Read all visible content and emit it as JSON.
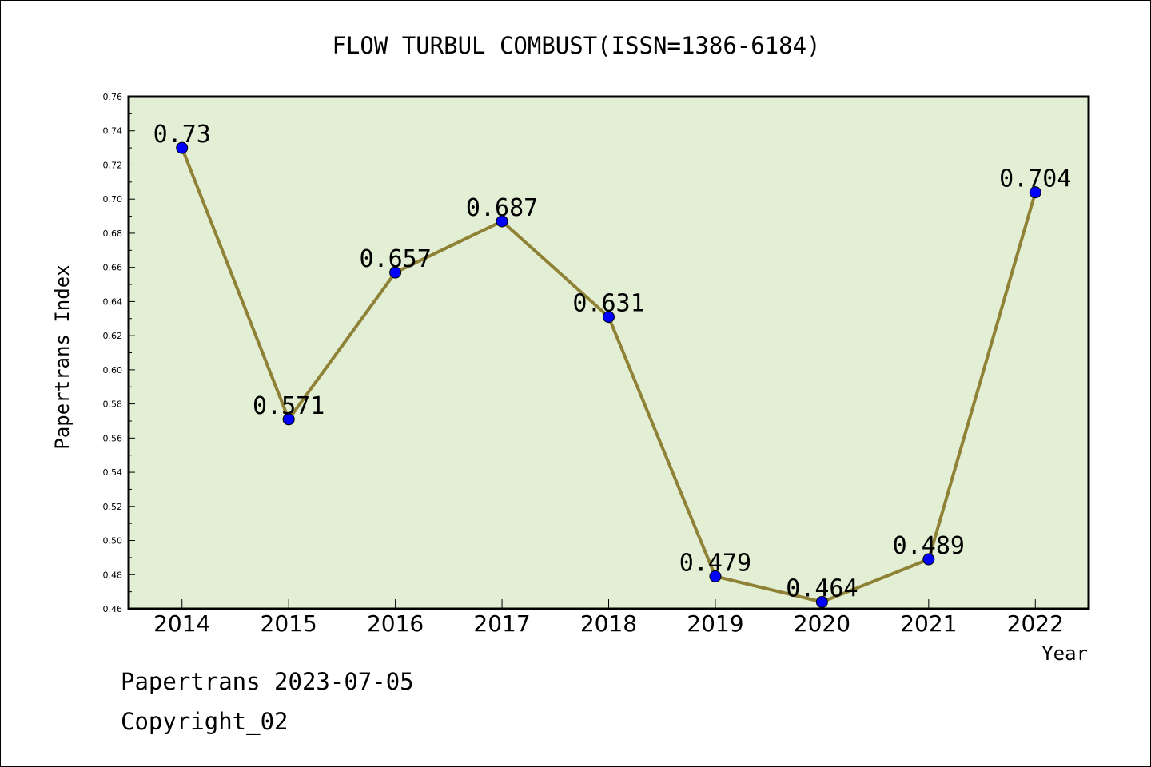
{
  "chart_data": {
    "type": "line",
    "title": "FLOW TURBUL COMBUST(ISSN=1386-6184)",
    "xlabel": "Year",
    "ylabel": "Papertrans Index",
    "categories": [
      "2014",
      "2015",
      "2016",
      "2017",
      "2018",
      "2019",
      "2020",
      "2021",
      "2022"
    ],
    "series": [
      {
        "values": [
          0.73,
          0.571,
          0.657,
          0.687,
          0.631,
          0.479,
          0.464,
          0.489,
          0.704
        ],
        "data_labels": [
          "0.73",
          "0.571",
          "0.657",
          "0.687",
          "0.631",
          "0.479",
          "0.464",
          "0.489",
          "0.704"
        ]
      }
    ],
    "ylim": [
      0.46,
      0.76
    ],
    "yticks": [
      "0.46",
      "0.48",
      "0.50",
      "0.52",
      "0.54",
      "0.56",
      "0.58",
      "0.60",
      "0.62",
      "0.64",
      "0.66",
      "0.68",
      "0.70",
      "0.72",
      "0.74",
      "0.76"
    ],
    "grid": false,
    "legend": "none",
    "colors": {
      "plot_background": "#e2efd5",
      "line": "#8f8136",
      "marker": "#0000ff"
    }
  },
  "footer": {
    "source": "Papertrans 2023-07-05",
    "copyright": "Copyright_02"
  }
}
